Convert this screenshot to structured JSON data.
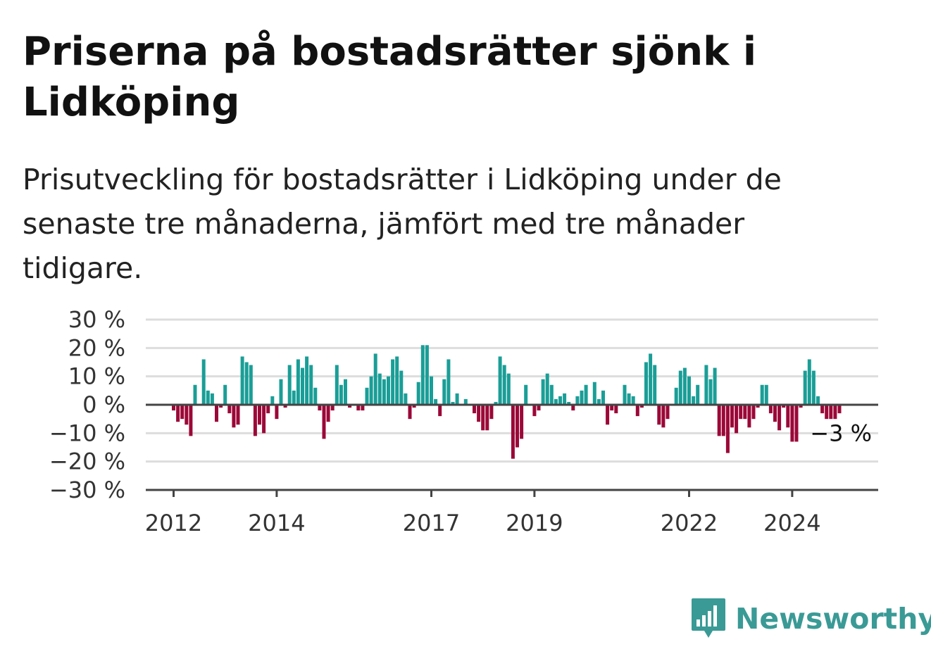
{
  "title": "Priserna på bostadsrätter sjönk i Lidköping",
  "subtitle": "Prisutveckling för bostadsrätter i Lidköping under de senaste tre månaderna, jämfört med tre månader tidigare.",
  "brand": {
    "name": "Newsworthy",
    "color": "#3a9a96",
    "icon": "bar-chart-speech-bubble-icon"
  },
  "colors": {
    "positive": "#1a9e97",
    "negative": "#9b0838",
    "grid": "#dddddd",
    "axis": "#444444"
  },
  "chart_data": {
    "type": "bar",
    "x_start": "2012-01",
    "frequency": "monthly",
    "ylim": [
      -30,
      30
    ],
    "yticks": [
      30,
      20,
      10,
      0,
      -10,
      -20,
      -30
    ],
    "ytick_labels": [
      "30 %",
      "20 %",
      "10 %",
      "0 %",
      "−10 %",
      "−20 %",
      "−30 %"
    ],
    "xticks": [
      {
        "label": "2012",
        "date": "2012-01"
      },
      {
        "label": "2014",
        "date": "2014-01"
      },
      {
        "label": "2017",
        "date": "2017-01"
      },
      {
        "label": "2019",
        "date": "2019-01"
      },
      {
        "label": "2022",
        "date": "2022-01"
      },
      {
        "label": "2024",
        "date": "2024-01"
      }
    ],
    "last_label": "−3 %",
    "grid": true,
    "values": [
      -2,
      -6,
      -5,
      -7,
      -11,
      7,
      0,
      16,
      5,
      4,
      -6,
      -1,
      7,
      -3,
      -8,
      -7,
      17,
      15,
      14,
      -11,
      -7,
      -10,
      -3,
      3,
      -5,
      9,
      -1,
      14,
      5,
      16,
      13,
      17,
      14,
      6,
      -2,
      -12,
      -6,
      -2,
      14,
      7,
      9,
      -1,
      0,
      -2,
      -2,
      6,
      10,
      18,
      11,
      9,
      10,
      16,
      17,
      12,
      4,
      -5,
      -1,
      8,
      21,
      21,
      10,
      2,
      -4,
      9,
      16,
      1,
      4,
      0,
      2,
      0,
      -3,
      -6,
      -9,
      -9,
      -5,
      1,
      17,
      14,
      11,
      -19,
      -15,
      -12,
      7,
      0,
      -4,
      -2,
      9,
      11,
      7,
      2,
      3,
      4,
      1,
      -2,
      3,
      5,
      7,
      0,
      8,
      2,
      5,
      -7,
      -2,
      -3,
      0,
      7,
      4,
      3,
      -4,
      -1,
      15,
      18,
      14,
      -7,
      -8,
      -5,
      0,
      6,
      12,
      13,
      10,
      3,
      7,
      0,
      14,
      9,
      13,
      -11,
      -11,
      -17,
      -8,
      -10,
      -5,
      -5,
      -8,
      -5,
      -1,
      7,
      7,
      -3,
      -6,
      -9,
      -1,
      -8,
      -13,
      -13,
      -1,
      12,
      16,
      12,
      3,
      -3,
      -5,
      -5,
      -5,
      -3
    ]
  }
}
